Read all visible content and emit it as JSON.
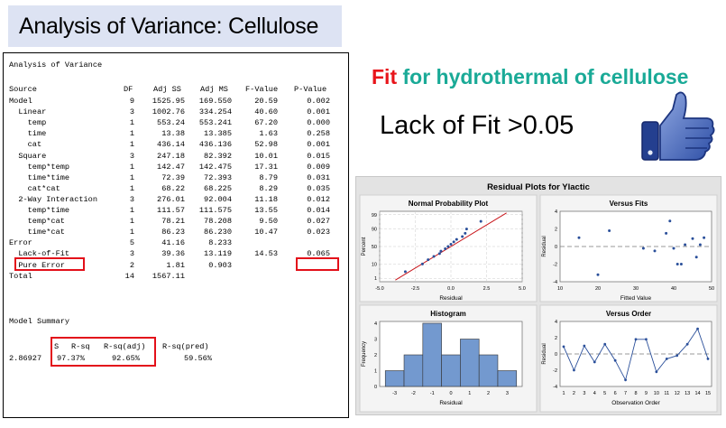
{
  "slide": {
    "title": "Analysis of Variance: Cellulose",
    "fit_word": "Fit",
    "fit_rest": " for hydrothermal of cellulose",
    "lack_of_fit_note": "Lack of Fit >0.05",
    "colors": {
      "fit_word": "#e8141a",
      "fit_rest": "#1aaa97",
      "highlight_box": "#e3101a",
      "title_bg": "#dde3f3"
    },
    "icon": "thumbs-up-icon"
  },
  "anova": {
    "heading": "Analysis of Variance",
    "headers": {
      "source": "Source",
      "df": "DF",
      "adj_ss": "Adj SS",
      "adj_ms": "Adj MS",
      "f": "F-Value",
      "p": "P-Value"
    },
    "rows": [
      {
        "source": "Model",
        "df": "9",
        "ss": "1525.95",
        "ms": "169.550",
        "f": "20.59",
        "p": "0.002"
      },
      {
        "source": "  Linear",
        "df": "3",
        "ss": "1002.76",
        "ms": "334.254",
        "f": "40.60",
        "p": "0.001"
      },
      {
        "source": "    temp",
        "df": "1",
        "ss": "553.24",
        "ms": "553.241",
        "f": "67.20",
        "p": "0.000"
      },
      {
        "source": "    time",
        "df": "1",
        "ss": "13.38",
        "ms": "13.385",
        "f": "1.63",
        "p": "0.258"
      },
      {
        "source": "    cat",
        "df": "1",
        "ss": "436.14",
        "ms": "436.136",
        "f": "52.98",
        "p": "0.001"
      },
      {
        "source": "  Square",
        "df": "3",
        "ss": "247.18",
        "ms": "82.392",
        "f": "10.01",
        "p": "0.015"
      },
      {
        "source": "    temp*temp",
        "df": "1",
        "ss": "142.47",
        "ms": "142.475",
        "f": "17.31",
        "p": "0.009"
      },
      {
        "source": "    time*time",
        "df": "1",
        "ss": "72.39",
        "ms": "72.393",
        "f": "8.79",
        "p": "0.031"
      },
      {
        "source": "    cat*cat",
        "df": "1",
        "ss": "68.22",
        "ms": "68.225",
        "f": "8.29",
        "p": "0.035"
      },
      {
        "source": "  2-Way Interaction",
        "df": "3",
        "ss": "276.01",
        "ms": "92.004",
        "f": "11.18",
        "p": "0.012"
      },
      {
        "source": "    temp*time",
        "df": "1",
        "ss": "111.57",
        "ms": "111.575",
        "f": "13.55",
        "p": "0.014"
      },
      {
        "source": "    temp*cat",
        "df": "1",
        "ss": "78.21",
        "ms": "78.208",
        "f": "9.50",
        "p": "0.027"
      },
      {
        "source": "    time*cat",
        "df": "1",
        "ss": "86.23",
        "ms": "86.230",
        "f": "10.47",
        "p": "0.023"
      },
      {
        "source": "Error",
        "df": "5",
        "ss": "41.16",
        "ms": "8.233",
        "f": "",
        "p": ""
      },
      {
        "source": "  Lack-of-Fit",
        "df": "3",
        "ss": "39.36",
        "ms": "13.119",
        "f": "14.53",
        "p": "0.065"
      },
      {
        "source": "  Pure Error",
        "df": "2",
        "ss": "1.81",
        "ms": "0.903",
        "f": "",
        "p": ""
      },
      {
        "source": "Total",
        "df": "14",
        "ss": "1567.11",
        "ms": "",
        "f": "",
        "p": ""
      }
    ]
  },
  "model_summary": {
    "heading": "Model Summary",
    "headers": {
      "s": "S",
      "rsq": "R-sq",
      "rsq_adj": "R-sq(adj)",
      "rsq_pred": "R-sq(pred)"
    },
    "values": {
      "s": "2.86927",
      "rsq": "97.37%",
      "rsq_adj": "92.65%",
      "rsq_pred": "59.56%"
    }
  },
  "residual_plots": {
    "title": "Residual Plots for Ylactic",
    "normal": {
      "title": "Normal Probability Plot",
      "xlabel": "Residual",
      "ylabel": "Percent",
      "yticks": [
        "99",
        "90",
        "50",
        "10",
        "1"
      ],
      "xticks": [
        "-5.0",
        "-2.5",
        "0.0",
        "2.5",
        "5.0"
      ]
    },
    "fits": {
      "title": "Versus Fits",
      "xlabel": "Fitted Value",
      "ylabel": "Residual",
      "yticks": [
        "4",
        "2",
        "0",
        "-2",
        "-4"
      ],
      "xticks": [
        "10",
        "20",
        "30",
        "40",
        "50"
      ]
    },
    "histogram": {
      "title": "Histogram",
      "xlabel": "Residual",
      "ylabel": "Frequency",
      "yticks": [
        "4",
        "3",
        "2",
        "1",
        "0"
      ],
      "xticks": [
        "-3",
        "-2",
        "-1",
        "0",
        "1",
        "2",
        "3"
      ]
    },
    "order": {
      "title": "Versus Order",
      "xlabel": "Observation Order",
      "ylabel": "Residual",
      "yticks": [
        "4",
        "2",
        "0",
        "-2",
        "-4"
      ],
      "xticks": [
        "1",
        "2",
        "3",
        "4",
        "5",
        "6",
        "7",
        "8",
        "9",
        "10",
        "11",
        "12",
        "13",
        "14",
        "15"
      ]
    }
  },
  "chart_data": [
    {
      "type": "scatter",
      "title": "Normal Probability Plot",
      "xlabel": "Residual",
      "ylabel": "Percent",
      "xlim": [
        -5,
        5
      ],
      "ylim": [
        1,
        99
      ],
      "fit_line": true,
      "x": [
        -3.2,
        -2.0,
        -1.6,
        -1.2,
        -0.8,
        -0.7,
        -0.4,
        -0.2,
        0.0,
        0.2,
        0.4,
        0.8,
        1.0,
        1.1,
        2.1
      ],
      "y": [
        3.3,
        10,
        16.7,
        23.3,
        30,
        36.7,
        43.3,
        50,
        56.7,
        63.3,
        70,
        76.7,
        83.3,
        90,
        96.7
      ]
    },
    {
      "type": "scatter",
      "title": "Versus Fits",
      "xlabel": "Fitted Value",
      "ylabel": "Residual",
      "xlim": [
        10,
        50
      ],
      "ylim": [
        -4,
        4
      ],
      "x": [
        15,
        20,
        23,
        32,
        35,
        38,
        39,
        40,
        41,
        42,
        43,
        45,
        46,
        47,
        48
      ],
      "y": [
        1.0,
        -3.2,
        1.8,
        -0.2,
        -0.5,
        1.5,
        2.9,
        -0.2,
        -2.0,
        -2.0,
        0.2,
        0.9,
        -1.2,
        0.2,
        1.0
      ]
    },
    {
      "type": "bar",
      "title": "Histogram",
      "xlabel": "Residual",
      "ylabel": "Frequency",
      "categories": [
        "-3",
        "-2",
        "-1",
        "0",
        "1",
        "2",
        "3"
      ],
      "bins": [
        -3.5,
        -2.5,
        -1.5,
        -0.5,
        0.5,
        1.5,
        2.5,
        3.5
      ],
      "values": [
        1,
        2,
        4,
        2,
        3,
        2,
        1
      ],
      "ylim": [
        0,
        4
      ]
    },
    {
      "type": "line",
      "title": "Versus Order",
      "xlabel": "Observation Order",
      "ylabel": "Residual",
      "ylim": [
        -4,
        4
      ],
      "x": [
        1,
        2,
        3,
        4,
        5,
        6,
        7,
        8,
        9,
        10,
        11,
        12,
        13,
        14,
        15
      ],
      "y": [
        0.9,
        -2.0,
        1.0,
        -1.0,
        1.2,
        -0.8,
        -3.2,
        1.8,
        1.8,
        -2.2,
        -0.6,
        -0.2,
        1.2,
        3.1,
        -0.6
      ]
    }
  ]
}
